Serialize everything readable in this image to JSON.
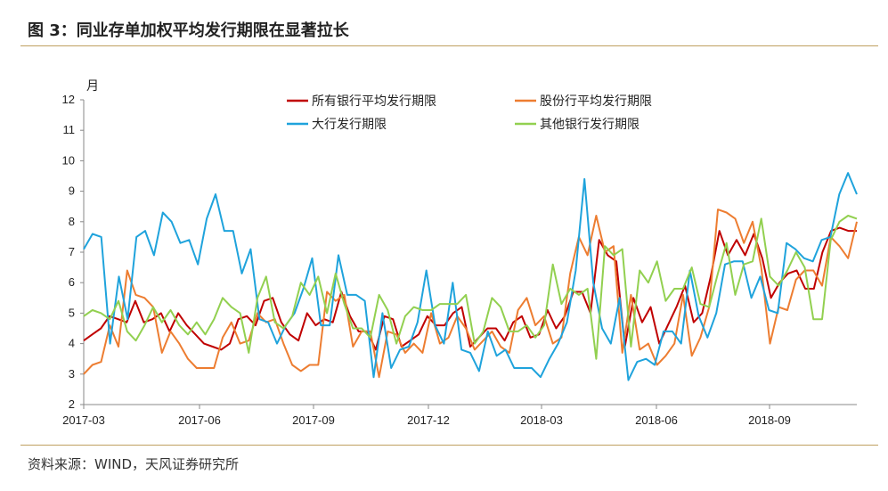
{
  "header": {
    "title": "图 3：同业存单加权平均发行期限在显著拉长"
  },
  "footer": {
    "source": "资料来源：WIND，天风证券研究所"
  },
  "chart_data": {
    "type": "line",
    "ylabel": "月",
    "ylim": [
      2,
      12
    ],
    "yticks": [
      "2",
      "3",
      "4",
      "5",
      "6",
      "7",
      "8",
      "9",
      "10",
      "11",
      "12"
    ],
    "xticks": [
      "2017-03",
      "2017-06",
      "2017-09",
      "2017-12",
      "2018-03",
      "2018-06",
      "2018-09"
    ],
    "grid": false,
    "legend": "top-center",
    "series": [
      {
        "name": "所有银行平均发行期限",
        "color": "#c00000",
        "values": [
          4.1,
          4.3,
          4.5,
          4.9,
          4.8,
          4.7,
          5.4,
          4.7,
          4.8,
          5.0,
          4.4,
          5.0,
          4.6,
          4.3,
          4.0,
          3.9,
          3.8,
          4.0,
          4.8,
          4.9,
          4.6,
          5.4,
          5.5,
          4.7,
          4.3,
          4.1,
          5.0,
          4.6,
          4.8,
          4.7,
          5.7,
          4.9,
          4.4,
          4.4,
          3.8,
          4.9,
          4.8,
          3.9,
          4.1,
          4.3,
          4.9,
          4.6,
          4.6,
          5.0,
          5.2,
          3.9,
          4.2,
          4.5,
          4.5,
          4.1,
          4.7,
          4.9,
          4.2,
          4.3,
          5.1,
          4.5,
          4.9,
          5.7,
          5.7,
          5.0,
          7.4,
          6.9,
          6.7,
          3.9,
          5.5,
          4.7,
          5.2,
          4.0,
          4.6,
          5.2,
          5.9,
          4.7,
          5.0,
          6.2,
          7.7,
          6.9,
          7.4,
          6.9,
          7.6,
          6.8,
          5.5,
          6.0,
          6.3,
          6.4,
          5.8,
          5.8,
          7.0,
          7.7,
          7.8,
          7.7,
          7.7
        ]
      },
      {
        "name": "股份行平均发行期限",
        "color": "#ed7d31",
        "values": [
          3.0,
          3.3,
          3.4,
          4.6,
          3.9,
          6.4,
          5.6,
          5.5,
          5.2,
          3.7,
          4.4,
          4.0,
          3.5,
          3.2,
          3.2,
          3.2,
          4.2,
          4.7,
          4.0,
          4.1,
          5.0,
          4.7,
          4.8,
          4.0,
          3.3,
          3.1,
          3.3,
          3.3,
          5.7,
          5.4,
          5.6,
          3.9,
          4.4,
          4.4,
          2.9,
          4.4,
          4.3,
          3.7,
          4.0,
          3.7,
          5.0,
          4.0,
          4.2,
          4.9,
          4.5,
          3.8,
          4.1,
          4.4,
          3.9,
          3.7,
          5.1,
          5.5,
          4.6,
          4.9,
          4.0,
          4.2,
          6.3,
          7.5,
          6.9,
          8.2,
          7.0,
          7.2,
          3.7,
          5.6,
          3.8,
          4.0,
          3.3,
          3.6,
          4.0,
          5.6,
          3.6,
          4.2,
          5.2,
          8.4,
          8.3,
          8.1,
          7.3,
          8.0,
          6.5,
          4.0,
          5.2,
          5.1,
          6.1,
          6.4,
          6.4,
          5.9,
          7.5,
          7.2,
          6.8,
          8.0
        ]
      },
      {
        "name": "大行发行期限",
        "color": "#1fa3dc",
        "values": [
          7.1,
          7.6,
          7.5,
          4.0,
          6.2,
          4.8,
          7.5,
          7.7,
          6.9,
          8.3,
          8.0,
          7.3,
          7.4,
          6.6,
          8.1,
          8.9,
          7.7,
          7.7,
          6.3,
          7.1,
          4.8,
          4.7,
          4.0,
          4.6,
          5.0,
          5.8,
          6.8,
          4.6,
          4.6,
          6.9,
          5.6,
          5.6,
          5.4,
          2.9,
          5.0,
          3.2,
          3.8,
          3.9,
          4.7,
          6.4,
          4.6,
          4.0,
          6.0,
          3.8,
          3.7,
          3.1,
          4.4,
          3.6,
          3.8,
          3.2,
          3.2,
          3.2,
          2.9,
          3.5,
          4.0,
          4.7,
          6.4,
          9.4,
          6.0,
          4.5,
          4.0,
          5.5,
          2.8,
          3.4,
          3.5,
          3.3,
          4.4,
          4.4,
          4.0,
          6.4,
          4.9,
          4.2,
          5.0,
          6.6,
          6.7,
          6.7,
          5.5,
          6.2,
          5.1,
          5.0,
          7.3,
          7.1,
          6.8,
          6.7,
          7.4,
          7.5,
          8.9,
          9.6,
          8.9
        ]
      },
      {
        "name": "其他银行发行期限",
        "color": "#92d050",
        "values": [
          4.9,
          5.1,
          5.0,
          4.8,
          5.4,
          4.4,
          4.1,
          4.6,
          5.2,
          4.7,
          5.1,
          4.6,
          4.3,
          4.7,
          4.3,
          4.8,
          5.5,
          5.2,
          5.0,
          3.7,
          5.5,
          6.2,
          4.7,
          4.5,
          4.9,
          6.0,
          5.6,
          6.2,
          5.0,
          6.3,
          5.3,
          4.5,
          4.5,
          4.2,
          5.6,
          5.1,
          4.0,
          4.9,
          5.2,
          5.1,
          5.1,
          5.3,
          5.3,
          5.3,
          5.6,
          4.0,
          4.4,
          5.5,
          5.2,
          4.4,
          4.4,
          4.6,
          4.2,
          4.6,
          6.6,
          5.3,
          5.8,
          5.6,
          5.8,
          3.5,
          7.2,
          6.9,
          7.1,
          3.9,
          6.4,
          6.0,
          6.7,
          5.4,
          5.8,
          5.8,
          6.5,
          5.3,
          5.2,
          6.3,
          7.3,
          5.6,
          6.6,
          6.7,
          8.1,
          6.2,
          5.9,
          6.4,
          7.0,
          6.5,
          4.8,
          4.8,
          7.4,
          8.0,
          8.2,
          8.1
        ]
      }
    ]
  }
}
